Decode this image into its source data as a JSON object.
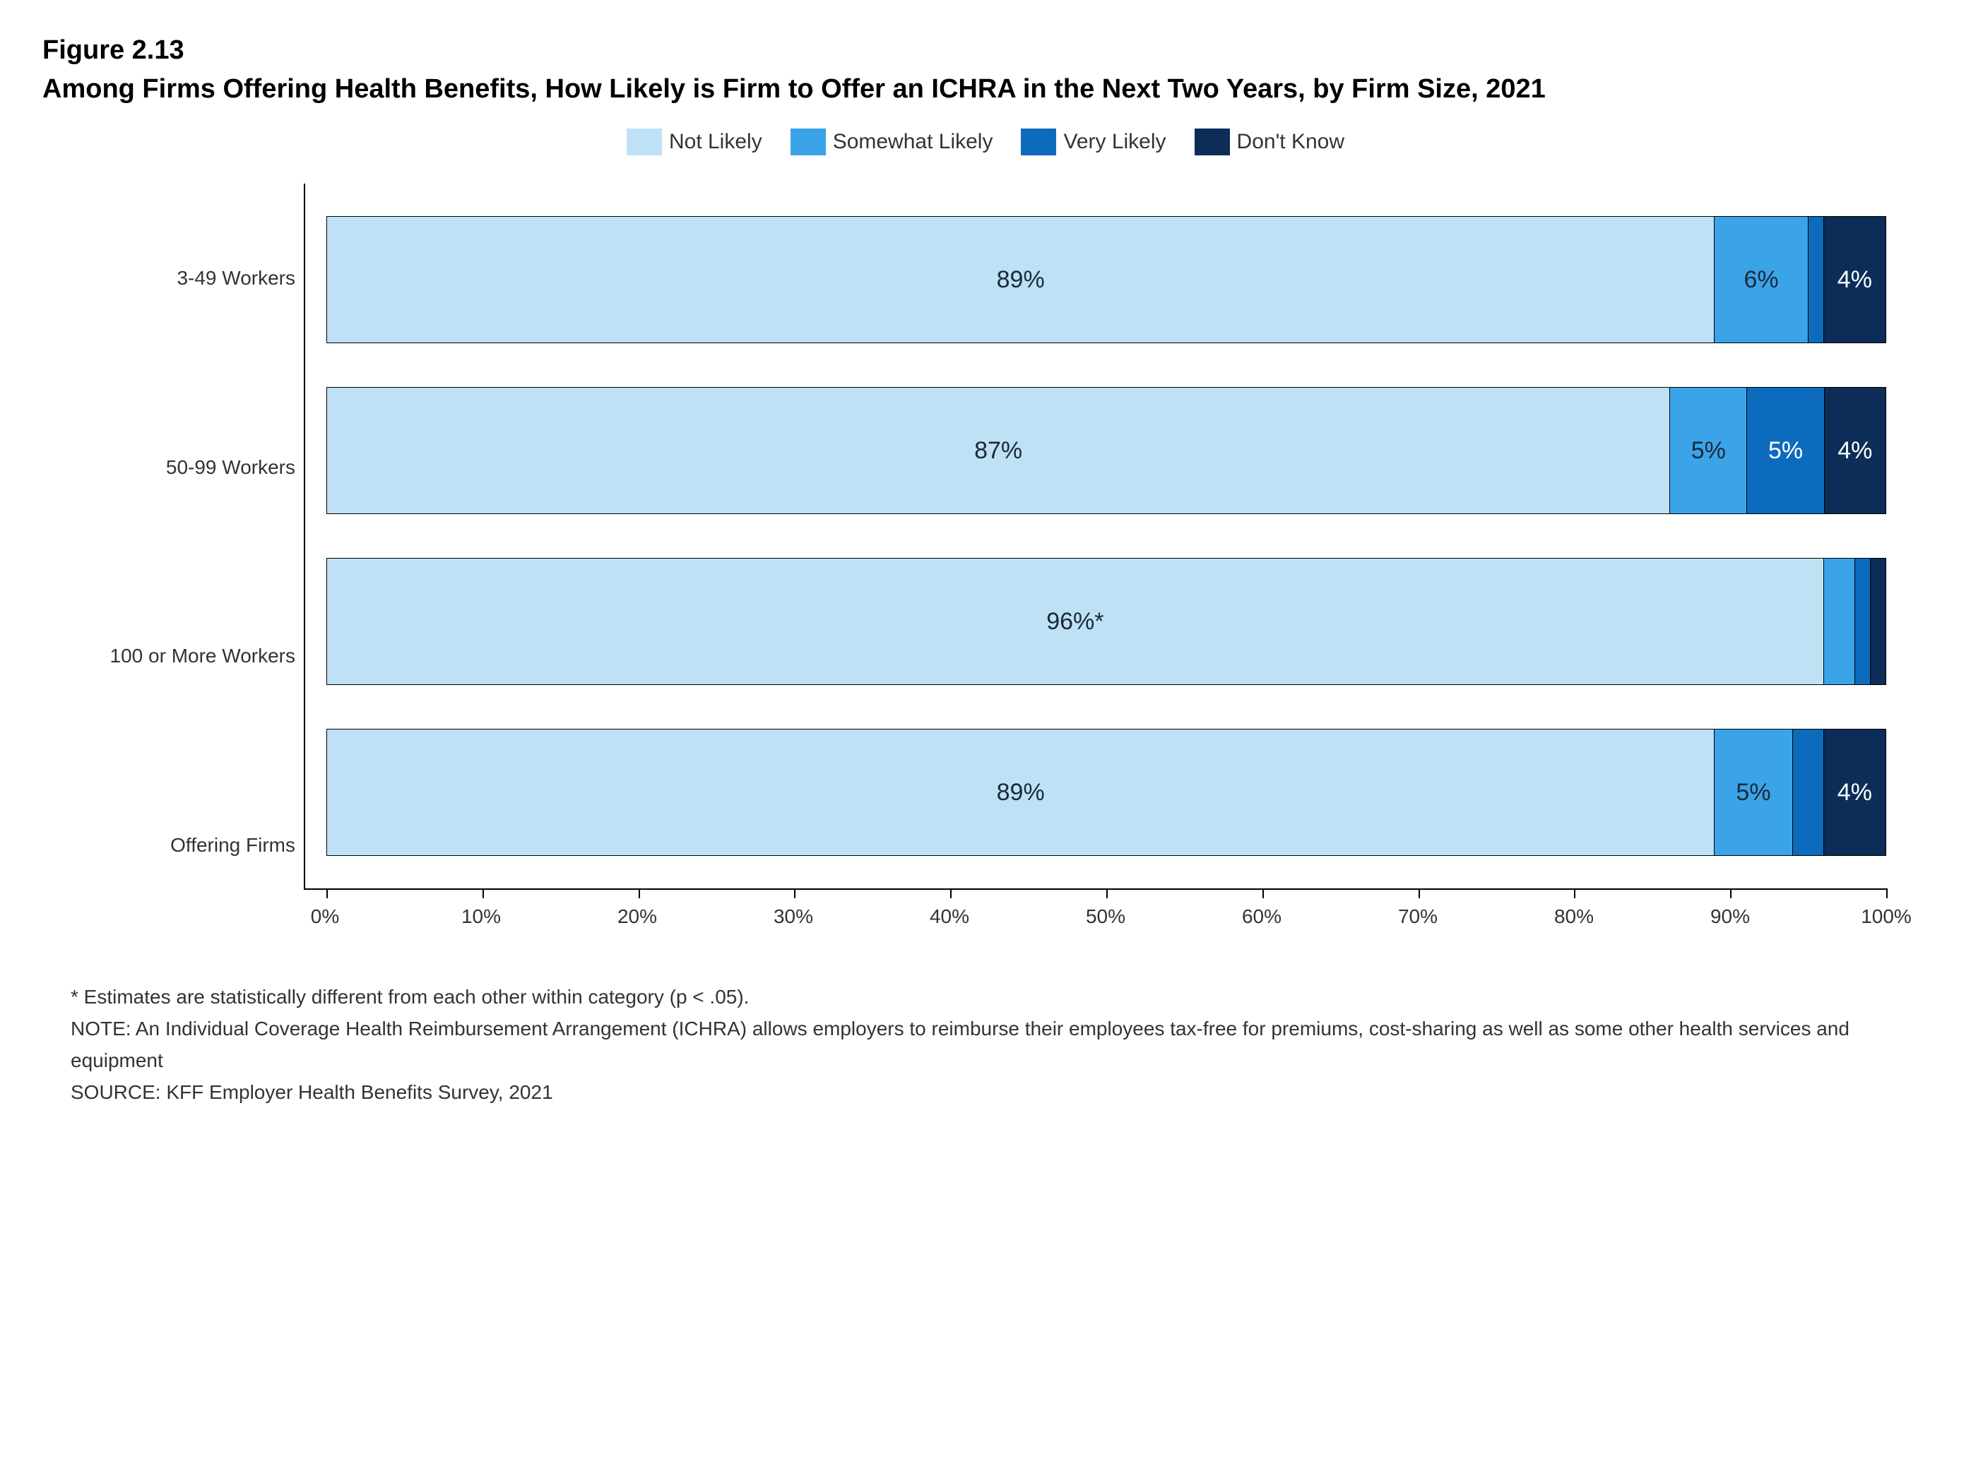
{
  "figure_number": "Figure 2.13",
  "figure_title": "Among Firms Offering Health Benefits, How Likely is Firm to Offer an ICHRA in the Next Two Years, by Firm Size, 2021",
  "legend": {
    "items": [
      {
        "label": "Not Likely",
        "color": "#bfe1f6"
      },
      {
        "label": "Somewhat Likely",
        "color": "#3ba3e8"
      },
      {
        "label": "Very Likely",
        "color": "#0d6bbd"
      },
      {
        "label": "Don't Know",
        "color": "#0c2d57"
      }
    ]
  },
  "chart": {
    "type": "stacked-bar-horizontal",
    "xlim": [
      0,
      100
    ],
    "xtick_step": 10,
    "xtick_labels": [
      "0%",
      "10%",
      "20%",
      "30%",
      "40%",
      "50%",
      "60%",
      "70%",
      "80%",
      "90%",
      "100%"
    ],
    "label_text_colors": {
      "light_bg": "#1a2a3a",
      "dark_bg": "#ffffff"
    },
    "categories": [
      {
        "name": "3-49 Workers",
        "segments": [
          {
            "value": 89,
            "label": "89%",
            "color": "#bfe1f6",
            "text": "light_bg"
          },
          {
            "value": 6,
            "label": "6%",
            "color": "#3ba3e8",
            "text": "light_bg"
          },
          {
            "value": 1,
            "label": "",
            "color": "#0d6bbd",
            "text": "dark_bg"
          },
          {
            "value": 4,
            "label": "4%",
            "color": "#0c2d57",
            "text": "dark_bg"
          }
        ]
      },
      {
        "name": "50-99 Workers",
        "segments": [
          {
            "value": 87,
            "label": "87%",
            "color": "#bfe1f6",
            "text": "light_bg"
          },
          {
            "value": 5,
            "label": "5%",
            "color": "#3ba3e8",
            "text": "light_bg"
          },
          {
            "value": 5,
            "label": "5%",
            "color": "#0d6bbd",
            "text": "dark_bg"
          },
          {
            "value": 4,
            "label": "4%",
            "color": "#0c2d57",
            "text": "dark_bg"
          }
        ]
      },
      {
        "name": "100 or More Workers",
        "segments": [
          {
            "value": 96,
            "label": "96%*",
            "color": "#bfe1f6",
            "text": "light_bg"
          },
          {
            "value": 2,
            "label": "",
            "color": "#3ba3e8",
            "text": "light_bg"
          },
          {
            "value": 1,
            "label": "",
            "color": "#0d6bbd",
            "text": "dark_bg"
          },
          {
            "value": 1,
            "label": "",
            "color": "#0c2d57",
            "text": "dark_bg"
          }
        ]
      },
      {
        "name": "Offering Firms",
        "segments": [
          {
            "value": 89,
            "label": "89%",
            "color": "#bfe1f6",
            "text": "light_bg"
          },
          {
            "value": 5,
            "label": "5%",
            "color": "#3ba3e8",
            "text": "light_bg"
          },
          {
            "value": 2,
            "label": "",
            "color": "#0d6bbd",
            "text": "dark_bg"
          },
          {
            "value": 4,
            "label": "4%",
            "color": "#0c2d57",
            "text": "dark_bg"
          }
        ]
      }
    ]
  },
  "footnotes": {
    "asterisk": "* Estimates are statistically different from each other within category (p < .05).",
    "note": "NOTE: An Individual Coverage Health Reimbursement Arrangement (ICHRA) allows employers to reimburse their employees tax-free for premiums, cost-sharing as well as some other health services and equipment",
    "source": "SOURCE: KFF Employer Health Benefits Survey, 2021"
  }
}
